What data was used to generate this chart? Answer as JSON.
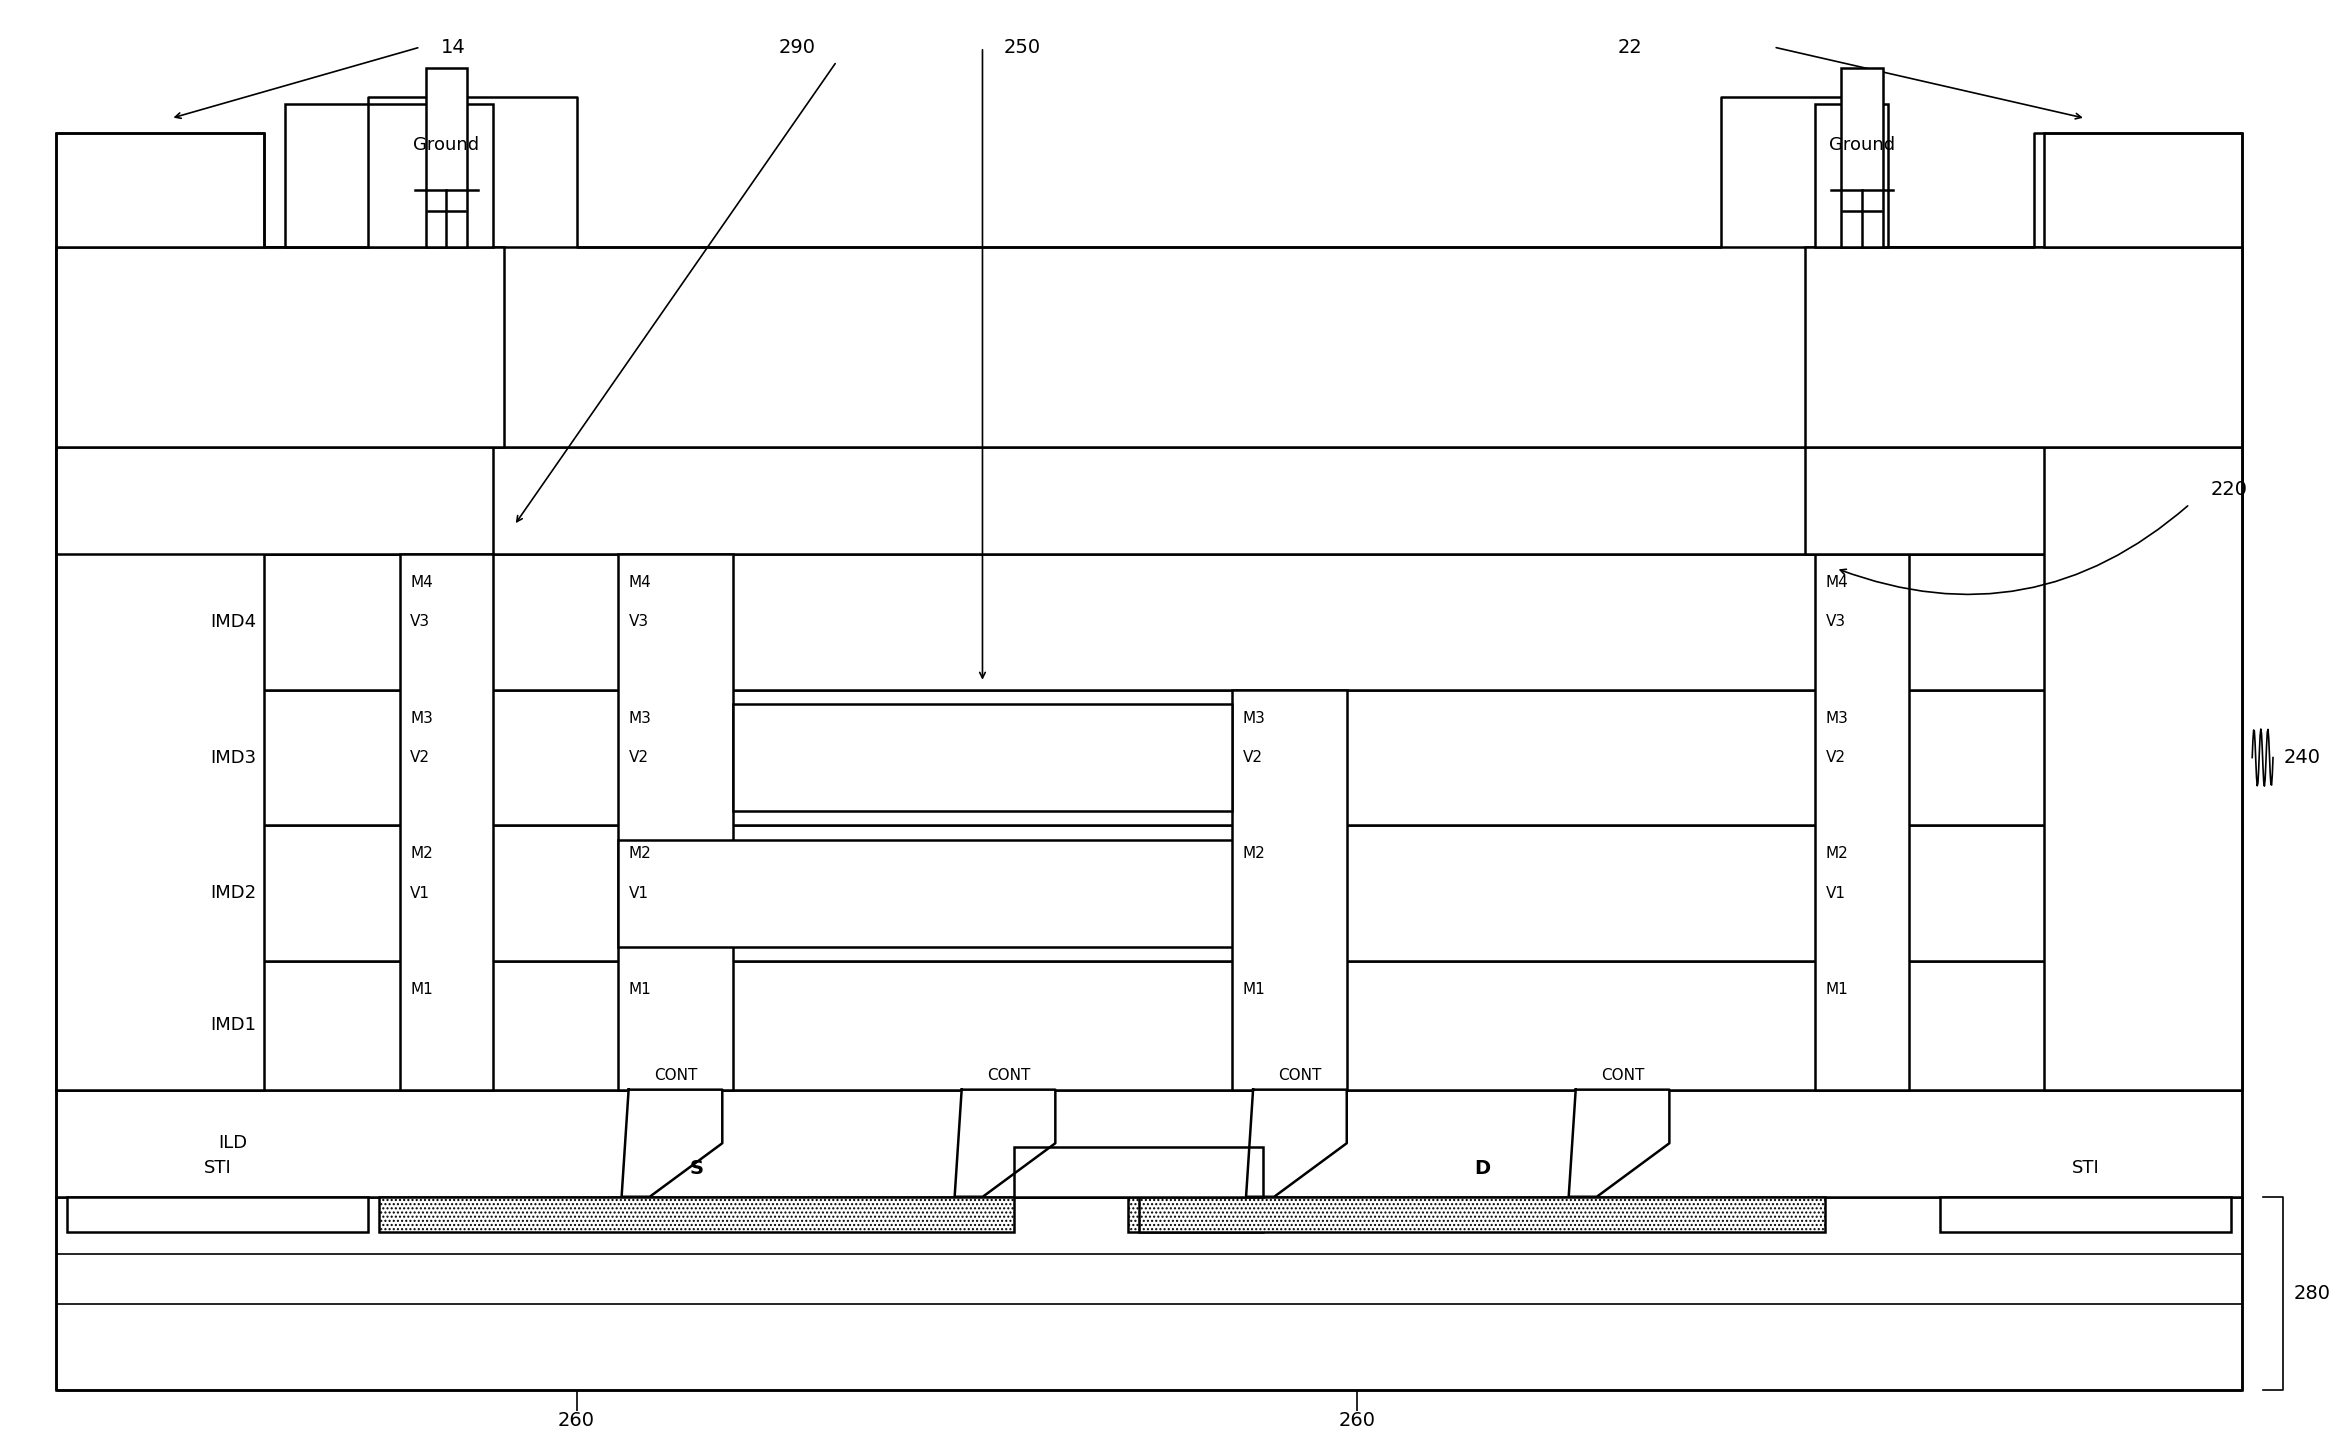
{
  "fig_width": 23.35,
  "fig_height": 14.39,
  "bg_color": "#ffffff",
  "line_color": "#000000",
  "lw_thick": 2.8,
  "lw_medium": 1.8,
  "lw_thin": 1.2,
  "labels": {
    "ref14": "14",
    "ref22": "22",
    "ref220": "220",
    "ref240": "240",
    "ref250": "250",
    "ref260a": "260",
    "ref260b": "260",
    "ref280": "280",
    "ref290": "290",
    "ground_left": "Ground",
    "ground_right": "Ground",
    "imd4": "IMD4",
    "imd3": "IMD3",
    "imd2": "IMD2",
    "imd1": "IMD1",
    "ild": "ILD",
    "sti_left": "STI",
    "sti_right": "STI",
    "s_label": "S",
    "d_label": "D",
    "cont": "CONT"
  },
  "fontsize_label": 13,
  "fontsize_small": 11,
  "fontsize_ref": 14
}
